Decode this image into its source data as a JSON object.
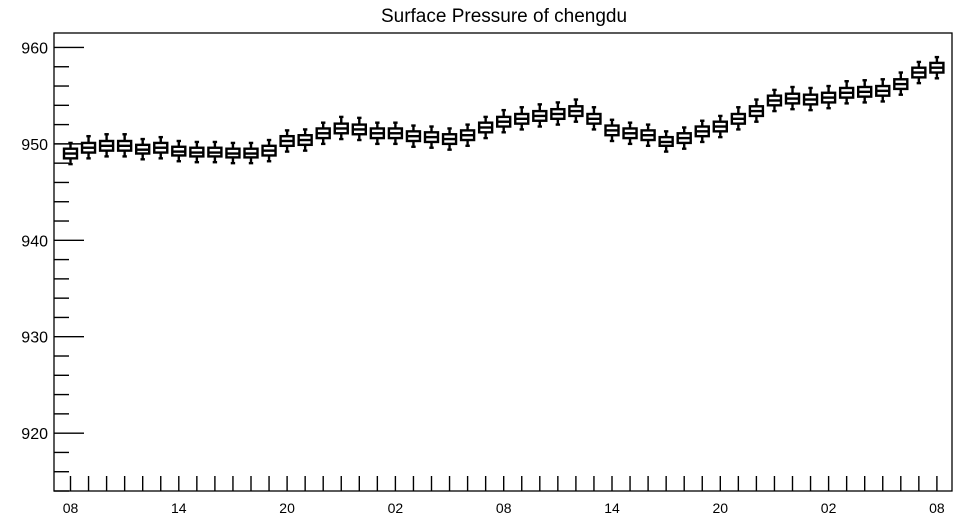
{
  "chart_data": {
    "type": "box",
    "title": "Surface Pressure of chengdu",
    "xlabel": "",
    "ylabel": "",
    "ylim": [
      914,
      961.5
    ],
    "yticks": [
      920,
      930,
      940,
      950,
      960
    ],
    "x_tick_labels": [
      "08",
      "14",
      "20",
      "02",
      "08",
      "14",
      "20",
      "02",
      "08"
    ],
    "grid": false,
    "legend": "none",
    "hours_per_box": 1,
    "box_color": "#000000",
    "series": [
      {
        "medians": [
          949.0,
          949.6,
          949.8,
          949.8,
          949.4,
          949.6,
          949.2,
          949.1,
          949.1,
          949.0,
          949.0,
          949.3,
          950.3,
          950.4,
          951.1,
          951.6,
          951.5,
          951.1,
          951.1,
          950.8,
          950.7,
          950.5,
          950.9,
          951.7,
          952.3,
          952.6,
          952.9,
          953.1,
          953.4,
          952.6,
          951.4,
          951.1,
          950.9,
          950.2,
          950.6,
          951.3,
          951.8,
          952.6,
          953.4,
          954.5,
          954.7,
          954.6,
          954.8,
          955.3,
          955.4,
          955.5,
          956.2,
          957.4,
          957.9
        ],
        "q1": [
          948.5,
          949.1,
          949.3,
          949.3,
          949.0,
          949.1,
          948.8,
          948.7,
          948.7,
          948.6,
          948.6,
          948.8,
          949.8,
          949.9,
          950.6,
          951.1,
          951.0,
          950.6,
          950.6,
          950.3,
          950.2,
          950.0,
          950.4,
          951.2,
          951.8,
          952.1,
          952.4,
          952.6,
          952.9,
          952.1,
          950.9,
          950.6,
          950.4,
          949.8,
          950.1,
          950.8,
          951.3,
          952.1,
          952.9,
          954.0,
          954.2,
          954.1,
          954.3,
          954.8,
          954.9,
          955.0,
          955.7,
          956.9,
          957.4
        ],
        "q3": [
          949.5,
          950.1,
          950.3,
          950.3,
          949.9,
          950.1,
          949.7,
          949.6,
          949.6,
          949.5,
          949.5,
          949.8,
          950.8,
          950.9,
          951.6,
          952.1,
          952.0,
          951.6,
          951.6,
          951.3,
          951.2,
          951.0,
          951.4,
          952.2,
          952.8,
          953.1,
          953.4,
          953.6,
          953.9,
          953.1,
          951.9,
          951.6,
          951.4,
          950.7,
          951.1,
          951.8,
          952.3,
          953.1,
          953.9,
          955.0,
          955.2,
          955.1,
          955.3,
          955.8,
          955.9,
          956.0,
          956.7,
          957.9,
          958.4
        ],
        "min": [
          947.9,
          948.5,
          948.7,
          948.7,
          948.4,
          948.5,
          948.2,
          948.1,
          948.1,
          948.0,
          948.0,
          948.2,
          949.2,
          949.3,
          950.0,
          950.5,
          950.4,
          950.0,
          950.0,
          949.7,
          949.6,
          949.4,
          949.8,
          950.6,
          951.2,
          951.5,
          951.8,
          952.0,
          952.3,
          951.5,
          950.3,
          950.0,
          949.8,
          949.2,
          949.5,
          950.2,
          950.7,
          951.5,
          952.3,
          953.4,
          953.6,
          953.5,
          953.7,
          954.2,
          954.3,
          954.4,
          955.1,
          956.3,
          956.8
        ],
        "max": [
          950.1,
          950.8,
          951.0,
          951.0,
          950.5,
          950.7,
          950.3,
          950.2,
          950.2,
          950.1,
          950.1,
          950.4,
          951.4,
          951.5,
          952.2,
          952.8,
          952.7,
          952.2,
          952.2,
          951.9,
          951.8,
          951.6,
          952.0,
          952.8,
          953.5,
          953.8,
          954.1,
          954.3,
          954.6,
          953.8,
          952.5,
          952.2,
          952.0,
          951.3,
          951.7,
          952.4,
          952.9,
          953.8,
          954.6,
          955.6,
          955.9,
          955.8,
          956.0,
          956.5,
          956.6,
          956.7,
          957.4,
          958.5,
          959.0
        ]
      }
    ]
  }
}
